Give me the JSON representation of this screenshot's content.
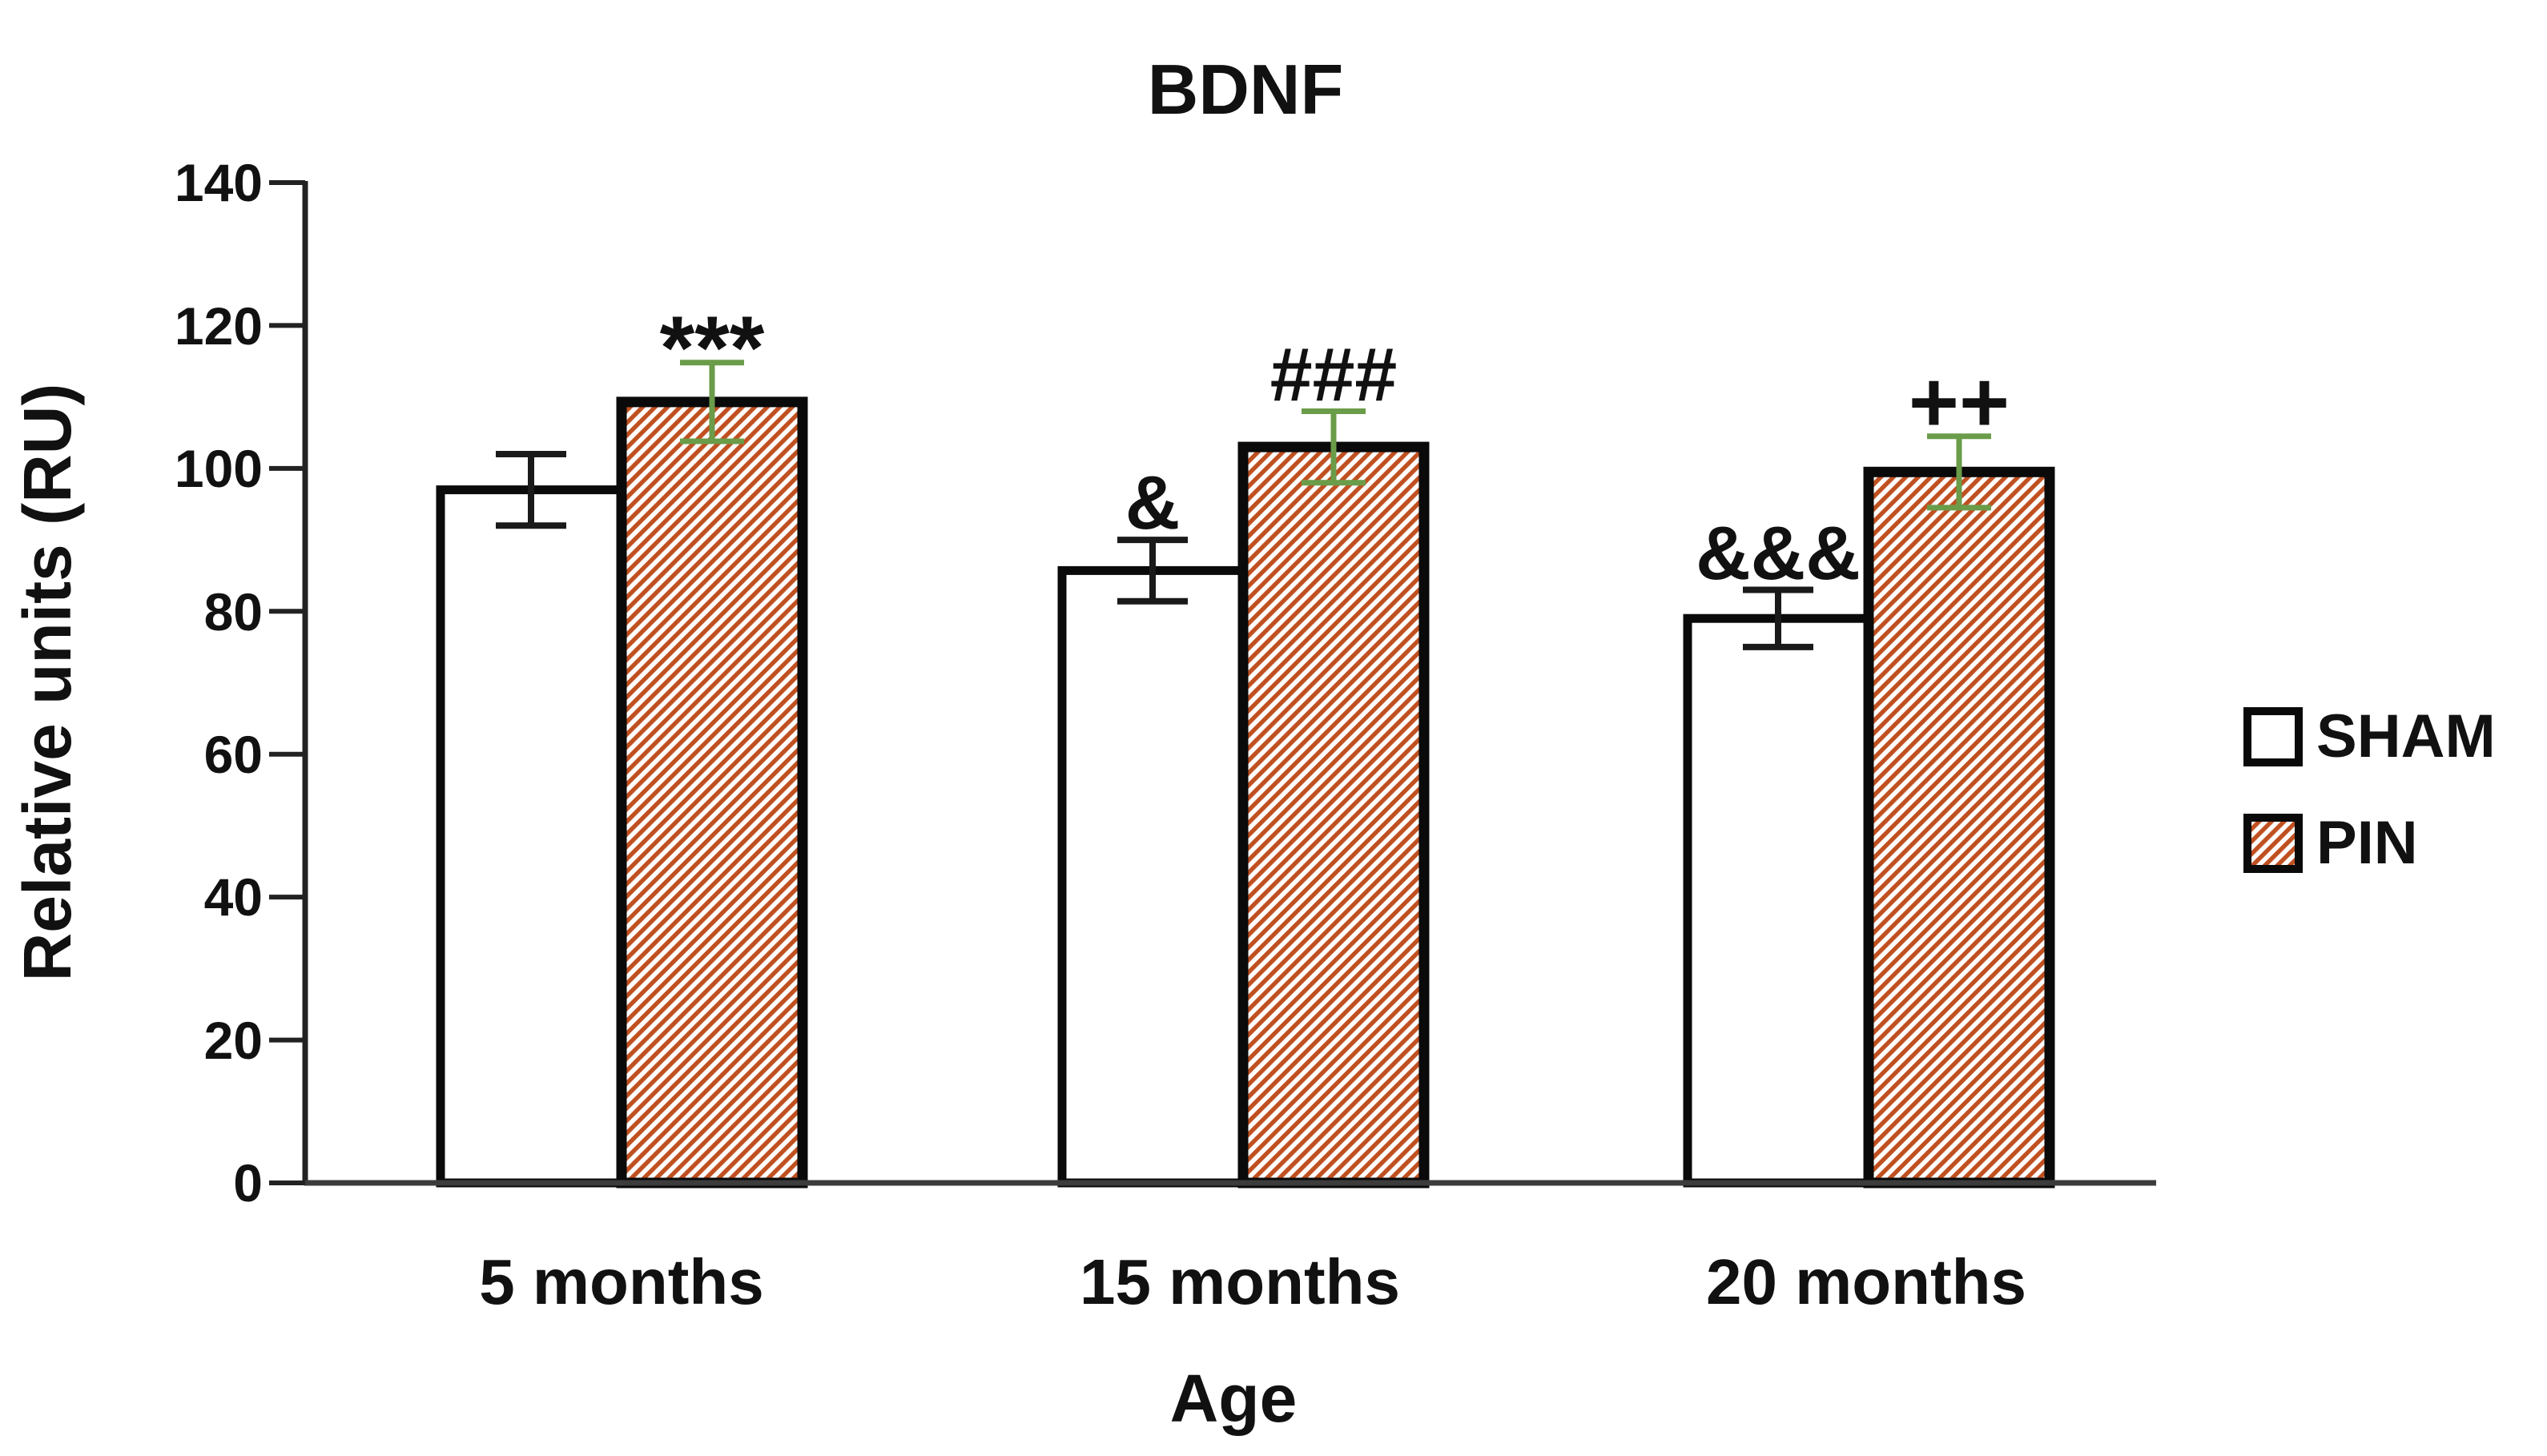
{
  "chart_data": {
    "type": "bar",
    "title": "BDNF",
    "xlabel": "Age",
    "ylabel": "Relative units (RU)",
    "categories": [
      "5 months",
      "15 months",
      "20 months"
    ],
    "series": [
      {
        "name": "SHAM",
        "fill": "white",
        "values": [
          97,
          85.7,
          79
        ],
        "errors": [
          5,
          4.3,
          4
        ],
        "error_color": "#1a1a1a"
      },
      {
        "name": "PIN",
        "fill": "hatch",
        "values": [
          109.3,
          103,
          99.5
        ],
        "errors": [
          5.5,
          5,
          5
        ],
        "error_color": "#6a9c49"
      }
    ],
    "ylim": [
      0,
      140
    ],
    "ytick_step": 20,
    "yticks": [
      0,
      20,
      40,
      60,
      80,
      100,
      120,
      140
    ],
    "grid": false,
    "legend_position": "right",
    "annotations": [
      {
        "category": "5 months",
        "series": "PIN",
        "text": "***"
      },
      {
        "category": "15 months",
        "series": "SHAM",
        "text": "&"
      },
      {
        "category": "15 months",
        "series": "PIN",
        "text": "###"
      },
      {
        "category": "20 months",
        "series": "SHAM",
        "text": "&&&"
      },
      {
        "category": "20 months",
        "series": "PIN",
        "text": "++"
      }
    ],
    "colors": {
      "hatch_stripe": "#c05020",
      "bar_border": "#0a0a0a",
      "axis": "#3c3c3c",
      "sham_error": "#1a1a1a",
      "pin_error": "#6a9c49",
      "text": "#111111",
      "background": "#ffffff"
    }
  }
}
